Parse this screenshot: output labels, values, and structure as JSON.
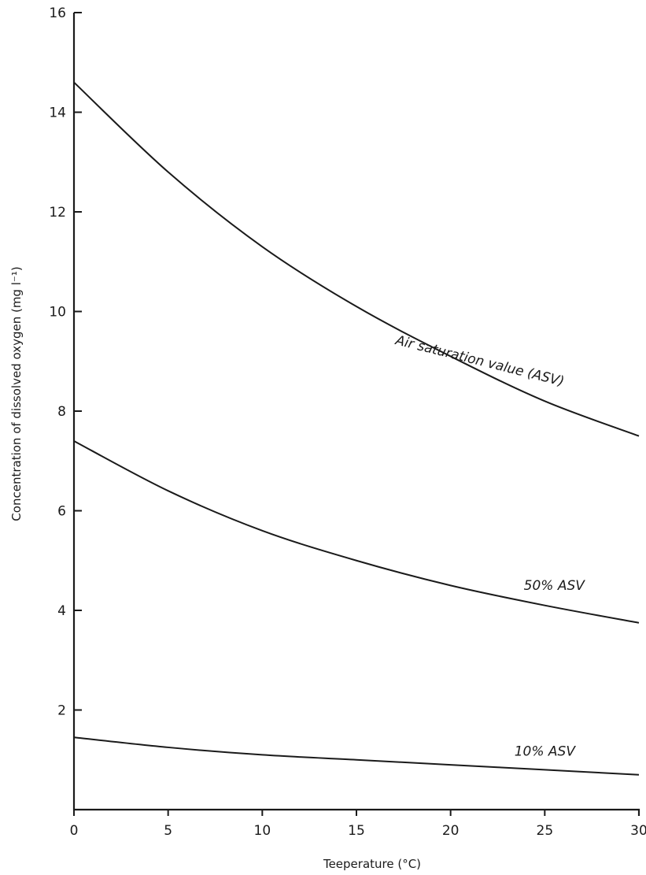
{
  "chart_data": {
    "type": "line",
    "title": "",
    "xlabel": "Teeperature (°C)",
    "ylabel": "Concentration of dissolved oxygen (mg l⁻¹)",
    "xlim": [
      0,
      30
    ],
    "ylim": [
      0,
      16
    ],
    "x_ticks": [
      "0",
      "5",
      "10",
      "15",
      "20",
      "25",
      "30"
    ],
    "y_ticks": [
      "2",
      "4",
      "6",
      "8",
      "10",
      "12",
      "14",
      "16"
    ],
    "grid": false,
    "legend": "none",
    "x": [
      0,
      5,
      10,
      15,
      20,
      25,
      30
    ],
    "series": [
      {
        "name": "Air saturation value (ASV)",
        "values": [
          14.6,
          12.8,
          11.3,
          10.1,
          9.1,
          8.2,
          7.5
        ]
      },
      {
        "name": "50% ASV",
        "values": [
          7.4,
          6.4,
          5.6,
          5.0,
          4.5,
          4.1,
          3.75
        ]
      },
      {
        "name": "10% ASV",
        "values": [
          1.45,
          1.25,
          1.1,
          1.0,
          0.9,
          0.8,
          0.7
        ]
      }
    ]
  }
}
